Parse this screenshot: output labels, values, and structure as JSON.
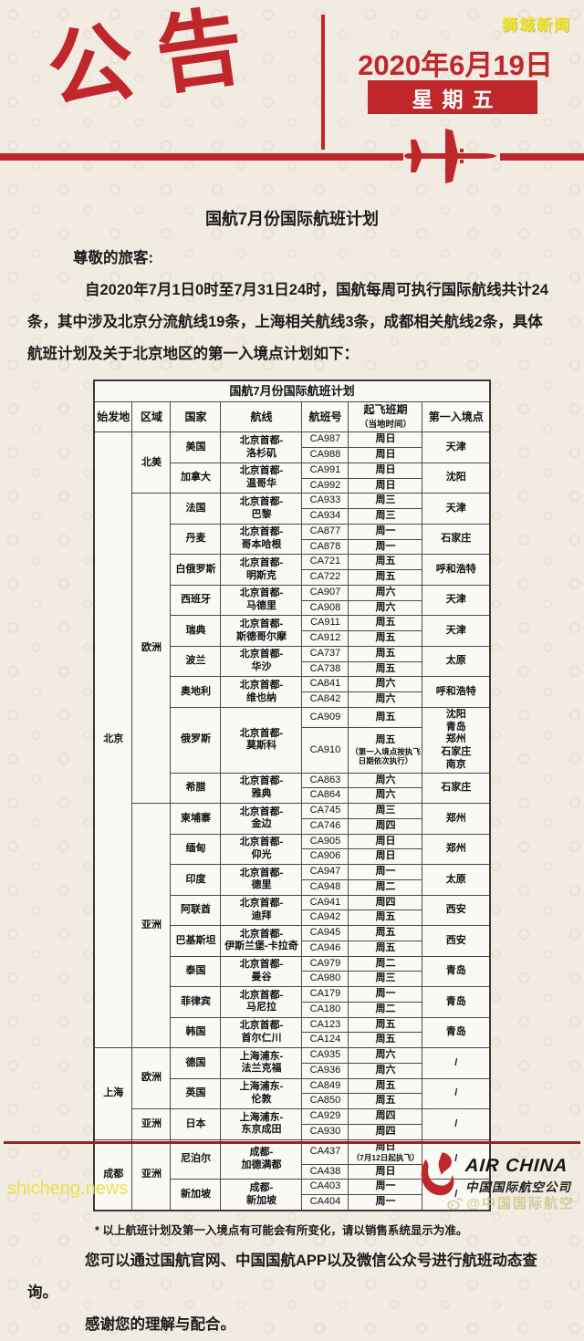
{
  "watermarks": {
    "top_right": "狮城新闻",
    "bottom_left": "shicheng.news",
    "bottom_right": "@中国国际航空"
  },
  "header": {
    "banner": "公告",
    "date": "2020年6月19日",
    "weekday": "星期五"
  },
  "colors": {
    "accent_red": "#c0272b",
    "dark_red_rule": "#9c2127",
    "watermark_yellow": "#f2ea1e",
    "background": "#f2ebe2"
  },
  "title": "国航7月份国际航班计划",
  "intro": {
    "salutation": "尊敬的旅客:",
    "paragraph": "自2020年7月1日0时至7月31日24时，国航每周可执行国际航线共计24条，其中涉及北京分流航线19条，上海相关航线3条，成都相关航线2条，具体航班计划及关于北京地区的第一入境点计划如下："
  },
  "table": {
    "title": "国航7月份国际航班计划",
    "headers": [
      "始发地",
      "区域",
      "国家",
      "航线",
      "航班号",
      {
        "main": "起飞班期",
        "sub": "（当地时间）"
      },
      "第一入境点"
    ],
    "sections": [
      {
        "origin": "北京",
        "regions": [
          {
            "name": "北美",
            "countries": [
              {
                "country": "美国",
                "route": "北京首都-洛杉矶",
                "flights": [
                  {
                    "no": "CA987",
                    "days": "周日"
                  },
                  {
                    "no": "CA988",
                    "days": "周日"
                  }
                ],
                "entry": "天津"
              },
              {
                "country": "加拿大",
                "route": "北京首都-温哥华",
                "flights": [
                  {
                    "no": "CA991",
                    "days": "周日"
                  },
                  {
                    "no": "CA992",
                    "days": "周日"
                  }
                ],
                "entry": "沈阳"
              }
            ]
          },
          {
            "name": "欧洲",
            "countries": [
              {
                "country": "法国",
                "route": "北京首都-巴黎",
                "flights": [
                  {
                    "no": "CA933",
                    "days": "周三"
                  },
                  {
                    "no": "CA934",
                    "days": "周三"
                  }
                ],
                "entry": "天津"
              },
              {
                "country": "丹麦",
                "route": "北京首都-哥本哈根",
                "flights": [
                  {
                    "no": "CA877",
                    "days": "周一"
                  },
                  {
                    "no": "CA878",
                    "days": "周一"
                  }
                ],
                "entry": "石家庄"
              },
              {
                "country": "白俄罗斯",
                "route": "北京首都-明斯克",
                "flights": [
                  {
                    "no": "CA721",
                    "days": "周五"
                  },
                  {
                    "no": "CA722",
                    "days": "周五"
                  }
                ],
                "entry": "呼和浩特"
              },
              {
                "country": "西班牙",
                "route": "北京首都-马德里",
                "flights": [
                  {
                    "no": "CA907",
                    "days": "周六"
                  },
                  {
                    "no": "CA908",
                    "days": "周六"
                  }
                ],
                "entry": "天津"
              },
              {
                "country": "瑞典",
                "route": "北京首都-斯德哥尔摩",
                "flights": [
                  {
                    "no": "CA911",
                    "days": "周五"
                  },
                  {
                    "no": "CA912",
                    "days": "周五"
                  }
                ],
                "entry": "天津"
              },
              {
                "country": "波兰",
                "route": "北京首都-华沙",
                "flights": [
                  {
                    "no": "CA737",
                    "days": "周五"
                  },
                  {
                    "no": "CA738",
                    "days": "周五"
                  }
                ],
                "entry": "太原"
              },
              {
                "country": "奥地利",
                "route": "北京首都-维也纳",
                "flights": [
                  {
                    "no": "CA841",
                    "days": "周六"
                  },
                  {
                    "no": "CA842",
                    "days": "周六"
                  }
                ],
                "entry": "呼和浩特"
              },
              {
                "country": "俄罗斯",
                "route": "北京首都-莫斯科",
                "flights": [
                  {
                    "no": "CA909",
                    "days": "周五"
                  },
                  {
                    "no": "CA910",
                    "days": "周五",
                    "note": "（第一入境点按执飞日期依次执行）"
                  }
                ],
                "entry": [
                  "沈阳",
                  "青岛",
                  "郑州",
                  "石家庄",
                  "南京"
                ]
              },
              {
                "country": "希腊",
                "route": "北京首都-雅典",
                "flights": [
                  {
                    "no": "CA863",
                    "days": "周六"
                  },
                  {
                    "no": "CA864",
                    "days": "周六"
                  }
                ],
                "entry": "石家庄"
              }
            ]
          },
          {
            "name": "亚洲",
            "countries": [
              {
                "country": "柬埔寨",
                "route": "北京首都-金边",
                "flights": [
                  {
                    "no": "CA745",
                    "days": "周三"
                  },
                  {
                    "no": "CA746",
                    "days": "周四"
                  }
                ],
                "entry": "郑州"
              },
              {
                "country": "缅甸",
                "route": "北京首都-仰光",
                "flights": [
                  {
                    "no": "CA905",
                    "days": "周日"
                  },
                  {
                    "no": "CA906",
                    "days": "周日"
                  }
                ],
                "entry": "郑州"
              },
              {
                "country": "印度",
                "route": "北京首都-德里",
                "flights": [
                  {
                    "no": "CA947",
                    "days": "周一"
                  },
                  {
                    "no": "CA948",
                    "days": "周二"
                  }
                ],
                "entry": "太原"
              },
              {
                "country": "阿联酋",
                "route": "北京首都-迪拜",
                "flights": [
                  {
                    "no": "CA941",
                    "days": "周四"
                  },
                  {
                    "no": "CA942",
                    "days": "周五"
                  }
                ],
                "entry": "西安"
              },
              {
                "country": "巴基斯坦",
                "route": "北京首都-伊斯兰堡-卡拉奇",
                "flights": [
                  {
                    "no": "CA945",
                    "days": "周五"
                  },
                  {
                    "no": "CA946",
                    "days": "周五"
                  }
                ],
                "entry": "西安"
              },
              {
                "country": "泰国",
                "route": "北京首都-曼谷",
                "flights": [
                  {
                    "no": "CA979",
                    "days": "周二"
                  },
                  {
                    "no": "CA980",
                    "days": "周三"
                  }
                ],
                "entry": "青岛"
              },
              {
                "country": "菲律宾",
                "route": "北京首都-马尼拉",
                "flights": [
                  {
                    "no": "CA179",
                    "days": "周一"
                  },
                  {
                    "no": "CA180",
                    "days": "周二"
                  }
                ],
                "entry": "青岛"
              },
              {
                "country": "韩国",
                "route": "北京首都-首尔仁川",
                "flights": [
                  {
                    "no": "CA123",
                    "days": "周五"
                  },
                  {
                    "no": "CA124",
                    "days": "周五"
                  }
                ],
                "entry": "青岛"
              }
            ]
          }
        ]
      },
      {
        "origin": "上海",
        "regions": [
          {
            "name": "欧洲",
            "countries": [
              {
                "country": "德国",
                "route": "上海浦东-法兰克福",
                "flights": [
                  {
                    "no": "CA935",
                    "days": "周六"
                  },
                  {
                    "no": "CA936",
                    "days": "周六"
                  }
                ],
                "entry": "/"
              },
              {
                "country": "英国",
                "route": "上海浦东-伦敦",
                "flights": [
                  {
                    "no": "CA849",
                    "days": "周五"
                  },
                  {
                    "no": "CA850",
                    "days": "周五"
                  }
                ],
                "entry": "/"
              }
            ]
          },
          {
            "name": "亚洲",
            "countries": [
              {
                "country": "日本",
                "route": "上海浦东-东京成田",
                "flights": [
                  {
                    "no": "CA929",
                    "days": "周四"
                  },
                  {
                    "no": "CA930",
                    "days": "周四"
                  }
                ],
                "entry": "/"
              }
            ]
          }
        ]
      },
      {
        "origin": "成都",
        "regions": [
          {
            "name": "亚洲",
            "countries": [
              {
                "country": "尼泊尔",
                "route": "成都-加德满都",
                "flights": [
                  {
                    "no": "CA437",
                    "days": "周日",
                    "note": "（7月12日起执飞）"
                  },
                  {
                    "no": "CA438",
                    "days": "周日"
                  }
                ],
                "entry": "/"
              },
              {
                "country": "新加坡",
                "route": "成都-新加坡",
                "flights": [
                  {
                    "no": "CA403",
                    "days": "周一"
                  },
                  {
                    "no": "CA404",
                    "days": "周一"
                  }
                ],
                "entry": "/"
              }
            ]
          }
        ]
      }
    ]
  },
  "footnote": "* 以上航班计划及第一入境点有可能会有所变化，请以销售系统显示为准。",
  "closing": {
    "p1": "您可以通过国航官网、中国国航APP以及微信公众号进行航班动态查询。",
    "p2": "感谢您的理解与配合。"
  },
  "logo": {
    "brand": "AIR CHINA",
    "company": "中国国际航空公司"
  }
}
